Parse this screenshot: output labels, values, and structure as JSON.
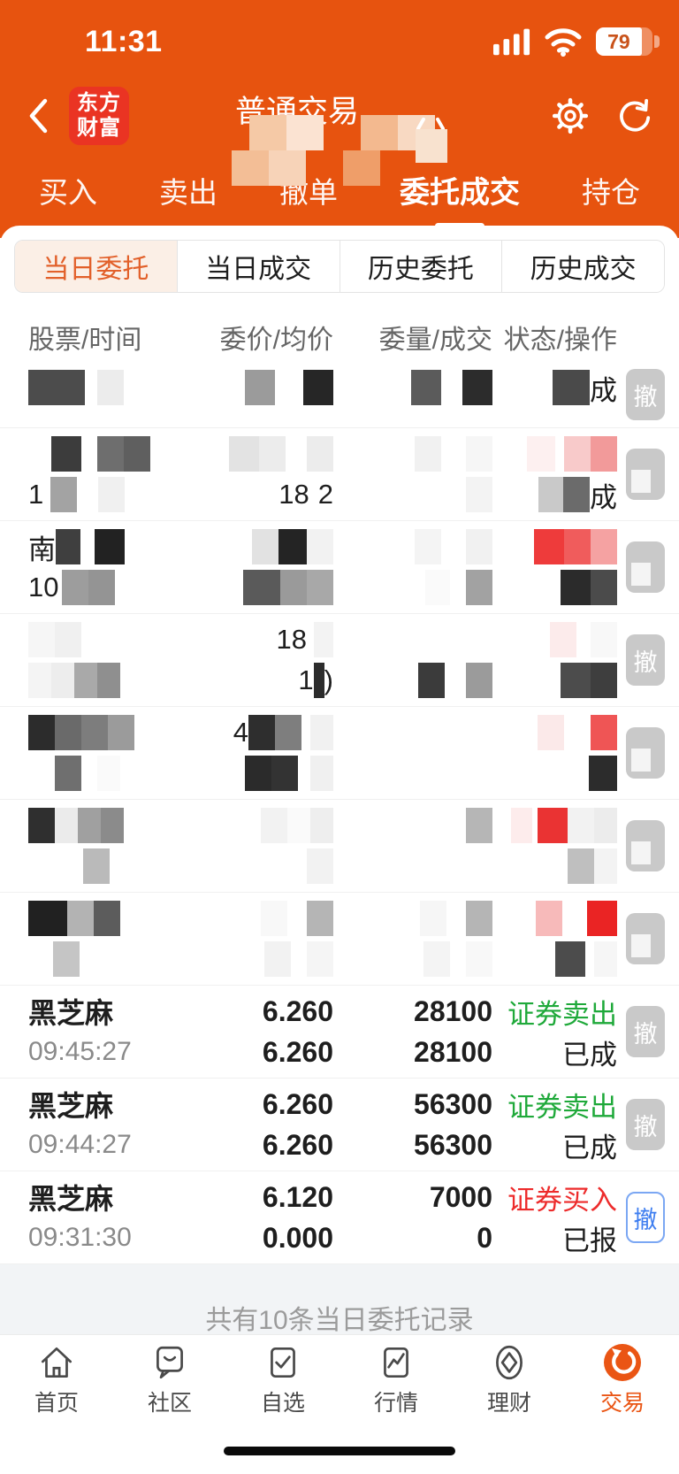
{
  "colors": {
    "primary_orange": "#E7530F",
    "logo_red": "#EA3423",
    "buy_red": "#ED2B2B",
    "sell_green": "#1FA93A",
    "cancel_blue": "#3E7EF0",
    "button_grey": "#C9C9C9",
    "subtab_active_bg": "#FBEFE6",
    "subtab_active_text": "#E2602A"
  },
  "status_bar": {
    "time": "11:31",
    "battery_percent": "79",
    "icons": [
      "signal-icon",
      "wifi-icon",
      "battery-icon"
    ]
  },
  "header": {
    "back_icon": "back-chevron-icon",
    "logo_line1": "东方",
    "logo_line2": "财富",
    "title": "普通交易",
    "right_icons": [
      "settings-gear-icon",
      "refresh-icon"
    ],
    "title_censor_row1": [
      "#F5C9A6",
      "#FBE3D2",
      "transparent",
      "#F3B98F",
      "#F8D9C2"
    ],
    "title_censor_row2": [
      "#F3BE96",
      "#F7D3B8",
      "transparent",
      "#EF9E69"
    ]
  },
  "tabs": {
    "items": [
      "买入",
      "卖出",
      "撤单",
      "委托成交",
      "持仓"
    ],
    "active_index": 3
  },
  "subtabs": {
    "items": [
      "当日委托",
      "当日成交",
      "历史委托",
      "历史成交"
    ],
    "active_index": 0
  },
  "table": {
    "headers": [
      "股票/时间",
      "委价/均价",
      "委量/成交",
      "状态/操作"
    ]
  },
  "orders": [
    {
      "censored": true,
      "partial": true,
      "lines": [
        {
          "stock": [
            "#4c4c4c:64",
            "g:14",
            "#ececec:30"
          ],
          "price": [
            "#9b9b9b:34",
            "g:32",
            "#262626:34"
          ],
          "qty": [
            "#5b5b5b:34",
            "g:24",
            "#2c2c2c:34"
          ],
          "status": {
            "blocks": [
              "#4a4a4a:42"
            ],
            "after": "成"
          }
        }
      ],
      "action": {
        "label": "撤",
        "style": "grey"
      }
    },
    {
      "censored": true,
      "lines": [
        {
          "stock": [
            "g:26",
            "#3c3c3c:34",
            "g:18",
            "#6e6e6e:30",
            "#5f5f5f:30"
          ],
          "price": [
            "#e3e3e3:34",
            "#ececec:30",
            "g:24",
            "#ececec:30"
          ],
          "qty": [
            "#f1f1f1:30",
            "g:28",
            "#f6f6f6:30"
          ],
          "status": [
            "#fdf0f0:32",
            "g:10",
            "#f8caca:30",
            "#f29a9a:30"
          ]
        },
        {
          "stock": {
            "before": "1",
            "blocks": [
              "g:8",
              "#a3a3a3:30",
              "g:24",
              "#f0f0f0:30"
            ]
          },
          "price": {
            "before": "18",
            "blocks": [
              "g:10"
            ],
            "after": "2"
          },
          "qty": [
            "#f3f3f3:30"
          ],
          "status": {
            "blocks": [
              "#c9c9c9:28",
              "#6b6b6b:30"
            ],
            "after": "成"
          }
        }
      ],
      "action": {
        "label": "",
        "style": "grey",
        "patch": true
      }
    },
    {
      "censored": true,
      "lines": [
        {
          "stock": {
            "before": "南",
            "blocks": [
              "#3f3f3f:28",
              "g:16",
              "#222222:34"
            ]
          },
          "price": [
            "#e2e2e2:30",
            "#242424:32",
            "#f2f2f2:30"
          ],
          "qty": [
            "#f4f4f4:30",
            "g:28",
            "#f1f1f1:30"
          ],
          "status": [
            "#ee3b3b:34",
            "#f05c5c:30",
            "#f5a2a2:30"
          ]
        },
        {
          "stock": {
            "before": "10",
            "blocks": [
              "g:4",
              "#9d9d9d:30",
              "#949494:30"
            ]
          },
          "price": [
            "#5a5a5a:42",
            "#9a9a9a:30",
            "#a8a8a8:30"
          ],
          "qty": [
            "#fafafa:28",
            "g:18",
            "#a2a2a2:30"
          ],
          "status": [
            "#2b2b2b:34",
            "#4b4b4b:30"
          ]
        }
      ],
      "action": {
        "label": "",
        "style": "grey",
        "patch": true
      }
    },
    {
      "censored": true,
      "lines": [
        {
          "stock": [
            "#f6f6f6:30",
            "#f0f0f0:30"
          ],
          "price": {
            "before": "18",
            "blocks": [
              "g:8",
              "#f3f3f3:22"
            ]
          },
          "qty": [],
          "status": [
            "#fcebeb:30",
            "g:16",
            "#f8f8f8:30"
          ]
        },
        {
          "stock": [
            "#f4f4f4:26",
            "#ededed:26",
            "#a9a9a9:26",
            "#8f8f8f:26"
          ],
          "price": {
            "before": "1",
            "blocks": [
              "#2c2c2c:12"
            ],
            "after": ")"
          },
          "qty": [
            "#3b3b3b:30",
            "g:24",
            "#9b9b9b:30"
          ],
          "status": [
            "#4c4c4c:34",
            "#3e3e3e:30"
          ]
        }
      ],
      "action": {
        "label": "撤",
        "style": "grey"
      }
    },
    {
      "censored": true,
      "lines": [
        {
          "stock": [
            "#2c2c2c:30",
            "#6a6a6a:30",
            "#7d7d7d:30",
            "#9b9b9b:30"
          ],
          "price": {
            "before": "4",
            "blocks": [
              "#2e2e2e:30",
              "#7e7e7e:30",
              "g:10",
              "#f1f1f1:26"
            ]
          },
          "qty": [],
          "status": [
            "#fbe9e9:30",
            "g:30",
            "#ef5555:30"
          ]
        },
        {
          "stock": [
            "g:30",
            "#6f6f6f:30",
            "g:18",
            "#fafafa:26"
          ],
          "price": [
            "#2b2b2b:30",
            "#333333:30",
            "g:14",
            "#f0f0f0:26"
          ],
          "qty": [],
          "status": [
            "#2c2c2c:32"
          ]
        }
      ],
      "action": {
        "label": "",
        "style": "grey",
        "patch": true
      }
    },
    {
      "censored": true,
      "lines": [
        {
          "stock": [
            "#2f2f2f:30",
            "#ebebeb:26",
            "#a0a0a0:26",
            "#8b8b8b:26"
          ],
          "price": [
            "#f2f2f2:30",
            "#fafafa:26",
            "#eeeeee:26"
          ],
          "qty": [
            "#b6b6b6:30"
          ],
          "status": [
            "#fdecec:24",
            "g:6",
            "#ea3333:34",
            "#f2f2f2:30",
            "#ececec:26"
          ]
        },
        {
          "stock": [
            "g:62",
            "#bababa:30"
          ],
          "price": [
            "#f2f2f2:30"
          ],
          "qty": [],
          "status": [
            "#bfbfbf:30",
            "#f3f3f3:26"
          ]
        }
      ],
      "action": {
        "label": "",
        "style": "grey",
        "patch": true
      }
    },
    {
      "censored": true,
      "lines": [
        {
          "stock": [
            "#212121:44",
            "#b3b3b3:30",
            "#5c5c5c:30"
          ],
          "price": [
            "#f8f8f8:30",
            "g:22",
            "#b5b5b5:30"
          ],
          "qty": [
            "#f6f6f6:30",
            "g:22",
            "#b5b5b5:30"
          ],
          "status": [
            "#f7baba:30",
            "g:28",
            "#ea2424:34"
          ]
        },
        {
          "stock": [
            "g:28",
            "#c5c5c5:30"
          ],
          "price": [
            "#f2f2f2:30",
            "g:18",
            "#f5f5f5:30"
          ],
          "qty": [
            "#f4f4f4:30",
            "g:18",
            "#f8f8f8:30"
          ],
          "status": [
            "#4c4c4c:34",
            "g:10",
            "#f6f6f6:26"
          ]
        }
      ],
      "action": {
        "label": "",
        "style": "grey",
        "patch": true
      }
    },
    {
      "censored": false,
      "stock": "黑芝麻",
      "time": "09:45:27",
      "price": "6.260",
      "avg_price": "6.260",
      "qty": "28100",
      "filled_qty": "28100",
      "direction": "证券卖出",
      "direction_color": "#1FA93A",
      "state": "已成",
      "action": {
        "label": "撤",
        "style": "grey"
      }
    },
    {
      "censored": false,
      "stock": "黑芝麻",
      "time": "09:44:27",
      "price": "6.260",
      "avg_price": "6.260",
      "qty": "56300",
      "filled_qty": "56300",
      "direction": "证券卖出",
      "direction_color": "#1FA93A",
      "state": "已成",
      "action": {
        "label": "撤",
        "style": "grey"
      }
    },
    {
      "censored": false,
      "stock": "黑芝麻",
      "time": "09:31:30",
      "price": "6.120",
      "avg_price": "0.000",
      "qty": "7000",
      "filled_qty": "0",
      "direction": "证券买入",
      "direction_color": "#ED2B2B",
      "state": "已报",
      "action": {
        "label": "撤",
        "style": "blue"
      }
    }
  ],
  "footer": {
    "summary": "共有10条当日委托记录"
  },
  "tabbar": {
    "active_index": 5,
    "items": [
      {
        "label": "首页",
        "icon": "home-icon"
      },
      {
        "label": "社区",
        "icon": "community-icon"
      },
      {
        "label": "自选",
        "icon": "watchlist-icon"
      },
      {
        "label": "行情",
        "icon": "market-icon"
      },
      {
        "label": "理财",
        "icon": "wealth-icon"
      },
      {
        "label": "交易",
        "icon": "trade-icon"
      }
    ]
  }
}
